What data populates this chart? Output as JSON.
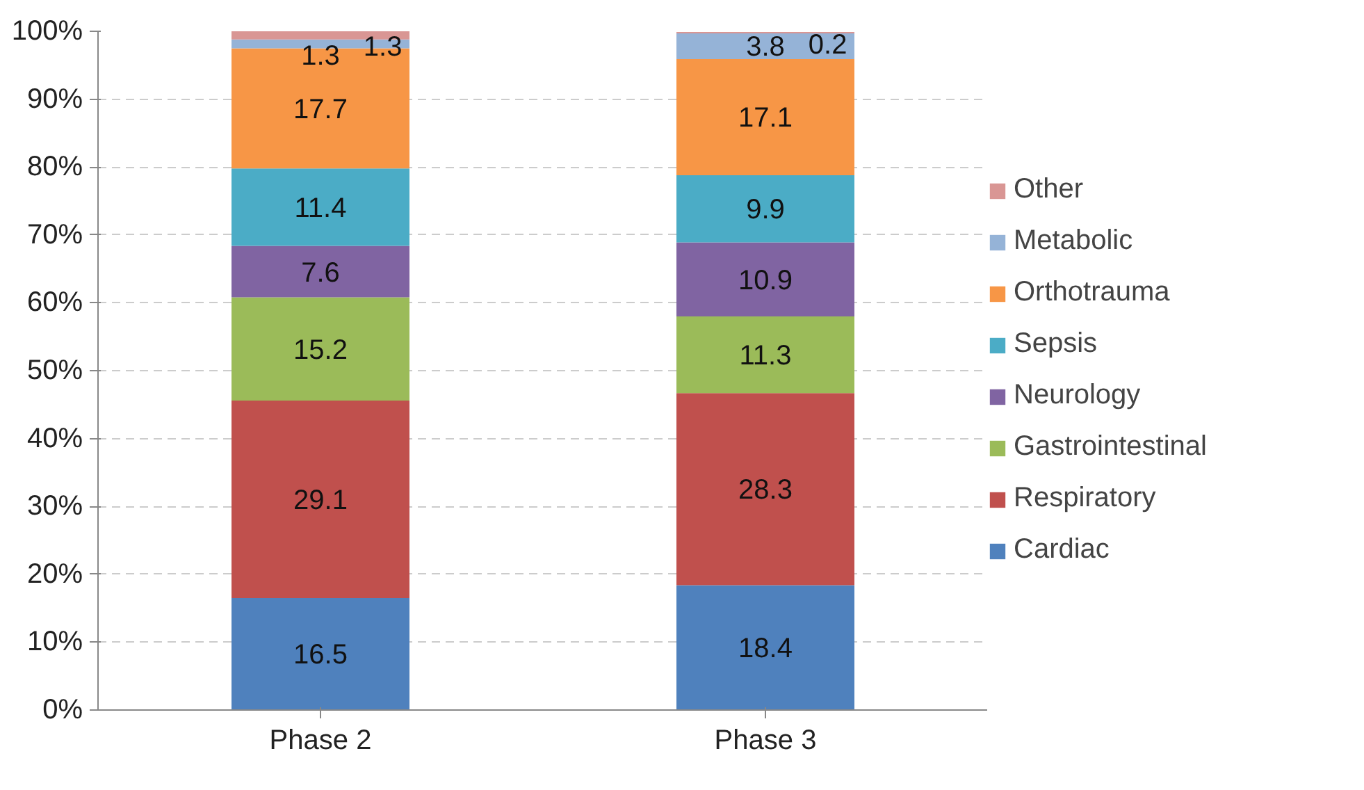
{
  "chart_data": {
    "type": "bar",
    "stacked": true,
    "categories": [
      "Phase 2",
      "Phase 3"
    ],
    "series": [
      {
        "name": "Cardiac",
        "color": "#4f81bd",
        "values": [
          16.5,
          18.4
        ]
      },
      {
        "name": "Respiratory",
        "color": "#c0504d",
        "values": [
          29.1,
          28.3
        ]
      },
      {
        "name": "Gastrointestinal",
        "color": "#9bbb59",
        "values": [
          15.2,
          11.3
        ]
      },
      {
        "name": "Neurology",
        "color": "#8064a2",
        "values": [
          7.6,
          10.9
        ]
      },
      {
        "name": "Sepsis",
        "color": "#4bacc6",
        "values": [
          11.4,
          9.9
        ]
      },
      {
        "name": "Orthotrauma",
        "color": "#f79646",
        "values": [
          17.7,
          17.1
        ]
      },
      {
        "name": "Metabolic",
        "color": "#95b3d7",
        "values": [
          1.3,
          3.8
        ]
      },
      {
        "name": "Other",
        "color": "#d99694",
        "values": [
          1.3,
          0.2
        ]
      }
    ],
    "ylim": [
      0,
      100
    ],
    "yticks": [
      {
        "value": 0,
        "label": "0%"
      },
      {
        "value": 10,
        "label": "10%"
      },
      {
        "value": 20,
        "label": "20%"
      },
      {
        "value": 30,
        "label": "30%"
      },
      {
        "value": 40,
        "label": "40%"
      },
      {
        "value": 50,
        "label": "50%"
      },
      {
        "value": 60,
        "label": "60%"
      },
      {
        "value": 70,
        "label": "70%"
      },
      {
        "value": 80,
        "label": "80%"
      },
      {
        "value": 90,
        "label": "90%"
      },
      {
        "value": 100,
        "label": "100%"
      }
    ],
    "grid": "y",
    "line_style": "dashed",
    "legend": "right",
    "data_labels": true
  }
}
